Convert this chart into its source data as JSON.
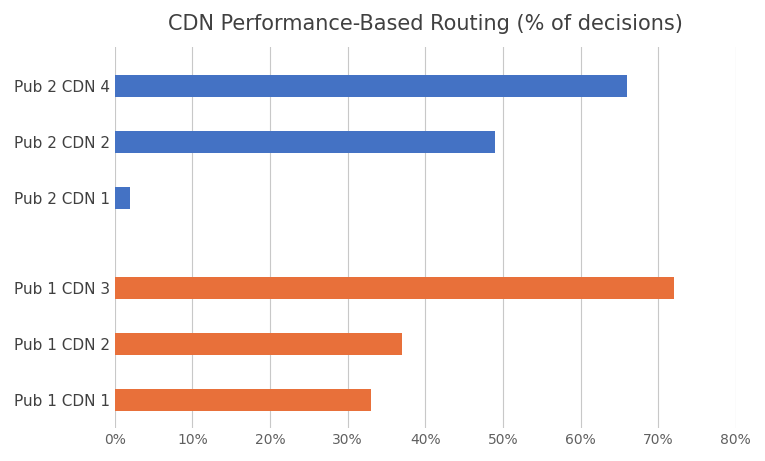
{
  "title": "CDN Performance-Based Routing (% of decisions)",
  "categories": [
    "Pub 1 CDN 1",
    "Pub 1 CDN 2",
    "Pub 1 CDN 3",
    "Pub 2 CDN 1",
    "Pub 2 CDN 2",
    "Pub 2 CDN 4"
  ],
  "values": [
    0.33,
    0.37,
    0.72,
    0.02,
    0.49,
    0.66
  ],
  "colors": [
    "#E8703A",
    "#E8703A",
    "#E8703A",
    "#4472C4",
    "#4472C4",
    "#4472C4"
  ],
  "y_positions": [
    0,
    1,
    2,
    3.6,
    4.6,
    5.6
  ],
  "xlim": [
    0,
    0.8
  ],
  "ylim": [
    -0.5,
    6.3
  ],
  "xticks": [
    0.0,
    0.1,
    0.2,
    0.3,
    0.4,
    0.5,
    0.6,
    0.7,
    0.8
  ],
  "xtick_labels": [
    "0%",
    "10%",
    "20%",
    "30%",
    "40%",
    "50%",
    "60%",
    "70%",
    "80%"
  ],
  "title_fontsize": 15,
  "tick_fontsize": 10,
  "label_fontsize": 11,
  "background_color": "#FFFFFF",
  "grid_color": "#C8C8C8",
  "bar_height": 0.4,
  "title_color": "#404040",
  "label_color": "#404040",
  "tick_color": "#606060"
}
